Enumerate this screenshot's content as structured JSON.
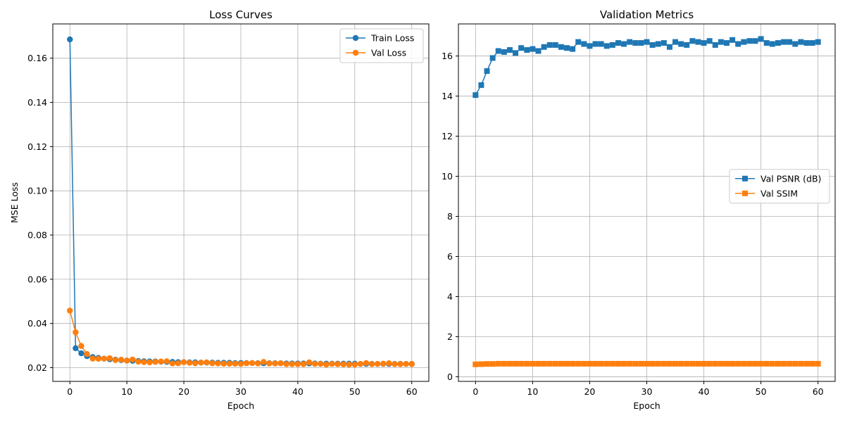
{
  "chart_data": [
    {
      "type": "line",
      "title": "Loss Curves",
      "xlabel": "Epoch",
      "ylabel": "MSE Loss",
      "xlim": [
        -3,
        63
      ],
      "ylim": [
        0.0138,
        0.1755
      ],
      "xticks": [
        0,
        10,
        20,
        30,
        40,
        50,
        60
      ],
      "yticks": [
        0.02,
        0.04,
        0.06,
        0.08,
        0.1,
        0.12,
        0.14,
        0.16
      ],
      "ytick_labels": [
        "0.02",
        "0.04",
        "0.06",
        "0.08",
        "0.10",
        "0.12",
        "0.14",
        "0.16"
      ],
      "grid": true,
      "legend_position": "upper right",
      "series": [
        {
          "name": "Train Loss",
          "color": "#1f77b4",
          "marker": "circle",
          "x": [
            0,
            1,
            2,
            3,
            4,
            5,
            6,
            7,
            8,
            9,
            10,
            11,
            12,
            13,
            14,
            15,
            16,
            17,
            18,
            19,
            20,
            21,
            22,
            23,
            24,
            25,
            26,
            27,
            28,
            29,
            30,
            31,
            32,
            33,
            34,
            35,
            36,
            37,
            38,
            39,
            40,
            41,
            42,
            43,
            44,
            45,
            46,
            47,
            48,
            49,
            50,
            51,
            52,
            53,
            54,
            55,
            56,
            57,
            58,
            59,
            60
          ],
          "values": [
            0.1685,
            0.0288,
            0.0265,
            0.0252,
            0.0248,
            0.0244,
            0.0241,
            0.0238,
            0.0236,
            0.0234,
            0.0232,
            0.0231,
            0.023,
            0.0229,
            0.0228,
            0.0228,
            0.0227,
            0.0226,
            0.0226,
            0.0225,
            0.0225,
            0.0224,
            0.0224,
            0.0223,
            0.0223,
            0.0223,
            0.0222,
            0.0222,
            0.0222,
            0.0221,
            0.0221,
            0.0221,
            0.0221,
            0.022,
            0.022,
            0.022,
            0.022,
            0.022,
            0.0219,
            0.0219,
            0.0219,
            0.0219,
            0.0219,
            0.0219,
            0.0218,
            0.0218,
            0.0218,
            0.0218,
            0.0218,
            0.0218,
            0.0218,
            0.0217,
            0.0217,
            0.0217,
            0.0217,
            0.0217,
            0.0217,
            0.0217,
            0.0217,
            0.0217,
            0.0217
          ]
        },
        {
          "name": "Val Loss",
          "color": "#ff7f0e",
          "marker": "circle",
          "x": [
            0,
            1,
            2,
            3,
            4,
            5,
            6,
            7,
            8,
            9,
            10,
            11,
            12,
            13,
            14,
            15,
            16,
            17,
            18,
            19,
            20,
            21,
            22,
            23,
            24,
            25,
            26,
            27,
            28,
            29,
            30,
            31,
            32,
            33,
            34,
            35,
            36,
            37,
            38,
            39,
            40,
            41,
            42,
            43,
            44,
            45,
            46,
            47,
            48,
            49,
            50,
            51,
            52,
            53,
            54,
            55,
            56,
            57,
            58,
            59,
            60
          ],
          "values": [
            0.0458,
            0.036,
            0.0298,
            0.0262,
            0.0241,
            0.024,
            0.0241,
            0.0243,
            0.0234,
            0.0236,
            0.0232,
            0.0237,
            0.0227,
            0.0225,
            0.0224,
            0.0226,
            0.0228,
            0.0229,
            0.0219,
            0.022,
            0.0225,
            0.0222,
            0.022,
            0.0223,
            0.0224,
            0.022,
            0.0219,
            0.0218,
            0.0218,
            0.0218,
            0.0217,
            0.022,
            0.0221,
            0.0219,
            0.0226,
            0.0219,
            0.0219,
            0.022,
            0.0216,
            0.0216,
            0.0216,
            0.0216,
            0.0224,
            0.0217,
            0.0217,
            0.0214,
            0.0217,
            0.0216,
            0.0215,
            0.0214,
            0.0214,
            0.0217,
            0.0221,
            0.0216,
            0.0217,
            0.0218,
            0.022,
            0.0216,
            0.0216,
            0.0217,
            0.0216
          ]
        }
      ]
    },
    {
      "type": "line",
      "title": "Validation Metrics",
      "xlabel": "Epoch",
      "ylabel": "",
      "xlim": [
        -3,
        63
      ],
      "ylim": [
        -0.23,
        17.6
      ],
      "xticks": [
        0,
        10,
        20,
        30,
        40,
        50,
        60
      ],
      "yticks": [
        0,
        2,
        4,
        6,
        8,
        10,
        12,
        14,
        16
      ],
      "ytick_labels": [
        "0",
        "2",
        "4",
        "6",
        "8",
        "10",
        "12",
        "14",
        "16"
      ],
      "grid": true,
      "legend_position": "center right",
      "series": [
        {
          "name": "Val PSNR (dB)",
          "color": "#1f77b4",
          "marker": "square",
          "x": [
            0,
            1,
            2,
            3,
            4,
            5,
            6,
            7,
            8,
            9,
            10,
            11,
            12,
            13,
            14,
            15,
            16,
            17,
            18,
            19,
            20,
            21,
            22,
            23,
            24,
            25,
            26,
            27,
            28,
            29,
            30,
            31,
            32,
            33,
            34,
            35,
            36,
            37,
            38,
            39,
            40,
            41,
            42,
            43,
            44,
            45,
            46,
            47,
            48,
            49,
            50,
            51,
            52,
            53,
            54,
            55,
            56,
            57,
            58,
            59,
            60
          ],
          "values": [
            14.05,
            14.55,
            15.25,
            15.9,
            16.25,
            16.2,
            16.3,
            16.15,
            16.4,
            16.3,
            16.35,
            16.25,
            16.45,
            16.55,
            16.55,
            16.45,
            16.4,
            16.35,
            16.7,
            16.6,
            16.5,
            16.6,
            16.6,
            16.5,
            16.55,
            16.65,
            16.6,
            16.7,
            16.65,
            16.65,
            16.7,
            16.55,
            16.6,
            16.65,
            16.45,
            16.7,
            16.6,
            16.55,
            16.75,
            16.7,
            16.65,
            16.75,
            16.55,
            16.7,
            16.65,
            16.8,
            16.6,
            16.7,
            16.75,
            16.75,
            16.85,
            16.65,
            16.6,
            16.65,
            16.7,
            16.7,
            16.6,
            16.7,
            16.65,
            16.65,
            16.7
          ]
        },
        {
          "name": "Val SSIM",
          "color": "#ff7f0e",
          "marker": "square",
          "x": [
            0,
            1,
            2,
            3,
            4,
            5,
            6,
            7,
            8,
            9,
            10,
            11,
            12,
            13,
            14,
            15,
            16,
            17,
            18,
            19,
            20,
            21,
            22,
            23,
            24,
            25,
            26,
            27,
            28,
            29,
            30,
            31,
            32,
            33,
            34,
            35,
            36,
            37,
            38,
            39,
            40,
            41,
            42,
            43,
            44,
            45,
            46,
            47,
            48,
            49,
            50,
            51,
            52,
            53,
            54,
            55,
            56,
            57,
            58,
            59,
            60
          ],
          "values": [
            0.62,
            0.63,
            0.64,
            0.64,
            0.65,
            0.65,
            0.65,
            0.65,
            0.65,
            0.65,
            0.65,
            0.65,
            0.65,
            0.65,
            0.65,
            0.65,
            0.65,
            0.65,
            0.65,
            0.65,
            0.65,
            0.65,
            0.65,
            0.65,
            0.65,
            0.65,
            0.65,
            0.65,
            0.65,
            0.65,
            0.65,
            0.65,
            0.65,
            0.65,
            0.65,
            0.65,
            0.65,
            0.65,
            0.65,
            0.65,
            0.65,
            0.65,
            0.65,
            0.65,
            0.65,
            0.65,
            0.65,
            0.65,
            0.65,
            0.65,
            0.65,
            0.65,
            0.65,
            0.65,
            0.65,
            0.65,
            0.65,
            0.65,
            0.65,
            0.65,
            0.65
          ]
        }
      ]
    }
  ]
}
